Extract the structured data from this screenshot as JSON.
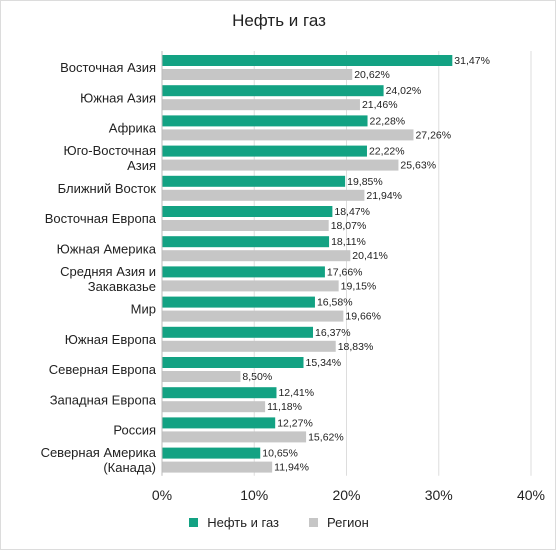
{
  "colors": {
    "oil_gas": "#13a283",
    "region": "#c6c6c6",
    "grid": "#dddddd"
  },
  "chart_data": {
    "type": "bar",
    "orientation": "horizontal",
    "title": "Нефть и газ",
    "categories": [
      "Восточная Азия",
      "Южная Азия",
      "Африка",
      "Юго-Восточная Азия",
      "Ближний Восток",
      "Восточная Европа",
      "Южная Америка",
      "Средняя Азия и Закавказье",
      "Мир",
      "Южная Европа",
      "Северная Европа",
      "Западная Европа",
      "Россия",
      "Северная Америка (Канада)"
    ],
    "category_lines": [
      [
        "Восточная Азия"
      ],
      [
        "Южная Азия"
      ],
      [
        "Африка"
      ],
      [
        "Юго-Восточная",
        "Азия"
      ],
      [
        "Ближний Восток"
      ],
      [
        "Восточная Европа"
      ],
      [
        "Южная Америка"
      ],
      [
        "Средняя Азия и",
        "Закавказье"
      ],
      [
        "Мир"
      ],
      [
        "Южная Европа"
      ],
      [
        "Северная Европа"
      ],
      [
        "Западная Европа"
      ],
      [
        "Россия"
      ],
      [
        "Северная Америка",
        "(Канада)"
      ]
    ],
    "series": [
      {
        "name": "Нефть и газ",
        "values": [
          31.47,
          24.02,
          22.28,
          22.22,
          19.85,
          18.47,
          18.11,
          17.66,
          16.58,
          16.37,
          15.34,
          12.41,
          12.27,
          10.65
        ],
        "labels": [
          "31,47%",
          "24,02%",
          "22,28%",
          "22,22%",
          "19,85%",
          "18,47%",
          "18,11%",
          "17,66%",
          "16,58%",
          "16,37%",
          "15,34%",
          "12,41%",
          "12,27%",
          "10,65%"
        ]
      },
      {
        "name": "Регион",
        "values": [
          20.62,
          21.46,
          27.26,
          25.63,
          21.94,
          18.07,
          20.41,
          19.15,
          19.66,
          18.83,
          8.5,
          11.18,
          15.62,
          11.94
        ],
        "labels": [
          "20,62%",
          "21,46%",
          "27,26%",
          "25,63%",
          "21,94%",
          "18,07%",
          "20,41%",
          "19,15%",
          "19,66%",
          "18,83%",
          "8,50%",
          "11,18%",
          "15,62%",
          "11,94%"
        ]
      }
    ],
    "xlim": [
      0,
      40
    ],
    "xticks": [
      0,
      10,
      20,
      30,
      40
    ],
    "xtick_labels": [
      "0%",
      "10%",
      "20%",
      "30%",
      "40%"
    ],
    "grid": true,
    "legend_position": "bottom"
  }
}
